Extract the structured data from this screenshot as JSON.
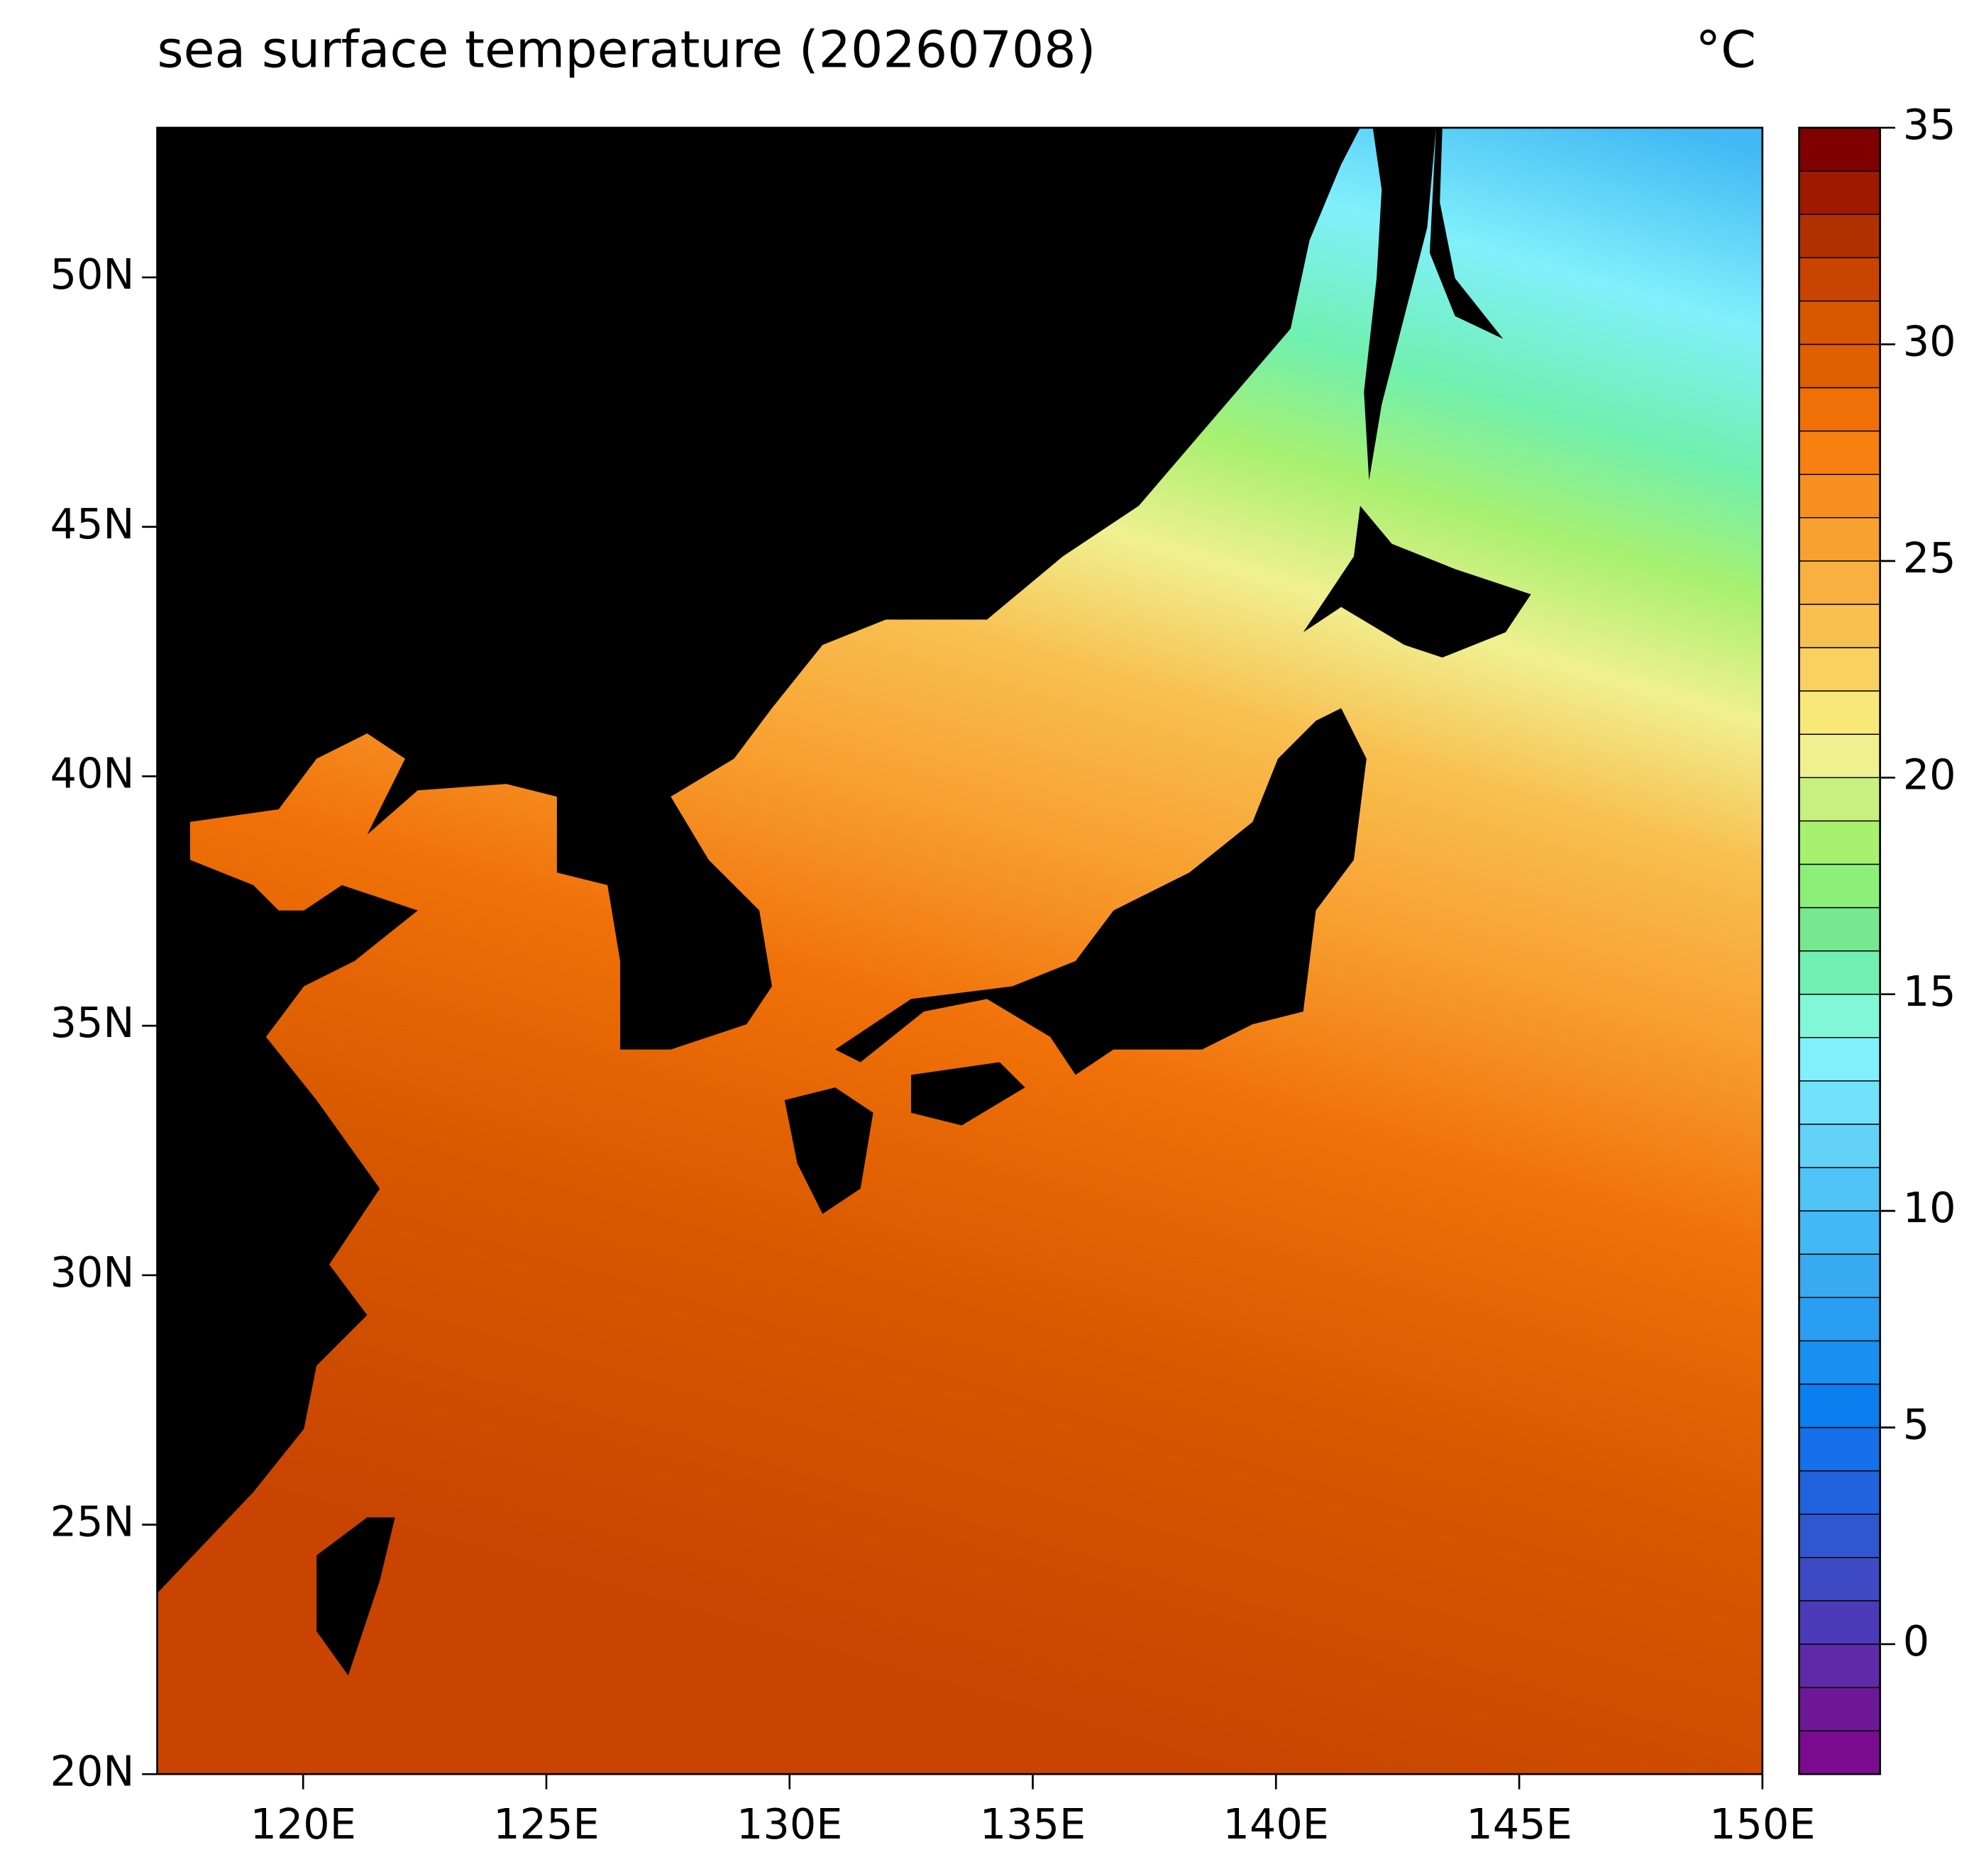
{
  "chart_data": {
    "type": "map",
    "title": "sea surface temperature (20260708)",
    "unit": "°C",
    "xlim": [
      117,
      150
    ],
    "ylim": [
      20,
      53
    ],
    "xticks": [
      {
        "value": 120,
        "label": "120E"
      },
      {
        "value": 125,
        "label": "125E"
      },
      {
        "value": 130,
        "label": "130E"
      },
      {
        "value": 135,
        "label": "135E"
      },
      {
        "value": 140,
        "label": "140E"
      },
      {
        "value": 145,
        "label": "145E"
      },
      {
        "value": 150,
        "label": "150E"
      }
    ],
    "yticks": [
      {
        "value": 20,
        "label": "20N"
      },
      {
        "value": 25,
        "label": "25N"
      },
      {
        "value": 30,
        "label": "30N"
      },
      {
        "value": 35,
        "label": "35N"
      },
      {
        "value": 40,
        "label": "40N"
      },
      {
        "value": 45,
        "label": "45N"
      },
      {
        "value": 50,
        "label": "50N"
      }
    ],
    "colorbar": {
      "lim": [
        -3,
        35
      ],
      "ticks": [
        0,
        5,
        10,
        15,
        20,
        25,
        30,
        35
      ],
      "levels": [
        -3,
        -2,
        -1,
        0,
        1,
        2,
        3,
        4,
        5,
        6,
        7,
        8,
        9,
        10,
        11,
        12,
        13,
        14,
        15,
        16,
        17,
        18,
        19,
        20,
        21,
        22,
        23,
        24,
        25,
        26,
        27,
        28,
        29,
        30,
        31,
        32,
        33,
        34,
        35
      ],
      "colors": [
        "#7b0c8f",
        "#6e1797",
        "#5e2aa8",
        "#4c3bb8",
        "#3d4ac4",
        "#2f58d0",
        "#2163de",
        "#1570ea",
        "#0a80f0",
        "#1890f2",
        "#2a9ef2",
        "#38aaf2",
        "#42b8f4",
        "#50c4f6",
        "#62d2f8",
        "#72e2fa",
        "#80f0fc",
        "#80f8d8",
        "#70f0b0",
        "#78e890",
        "#8cf078",
        "#a8f070",
        "#c8f080",
        "#f0f090",
        "#f8e878",
        "#fad060",
        "#f8c050",
        "#f8b040",
        "#f8a030",
        "#f89020",
        "#f88010",
        "#f07008",
        "#e06000",
        "#d85800",
        "#c84400",
        "#b03000",
        "#a01800",
        "#800000"
      ]
    },
    "land_color": "#000000"
  }
}
